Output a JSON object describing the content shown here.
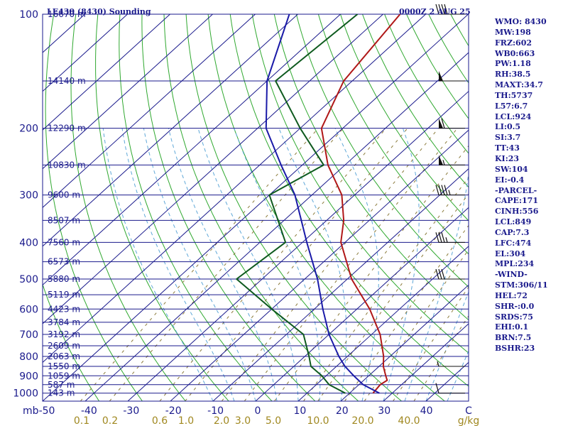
{
  "header": {
    "station_title": "LE430 (8430) Sounding",
    "time_label": "0000Z  2 AUG 25"
  },
  "indices": [
    "WMO: 8430",
    "MW:198",
    "FRZ:602",
    "WB0:663",
    "PW:1.18",
    "RH:38.5",
    "MAXT:34.7",
    "TH:5737",
    "L57:6.7",
    "LCL:924",
    "LI:0.5",
    "SI:3.7",
    "TT:43",
    "KI:23",
    "SW:104",
    "EI:-0.4",
    "-PARCEL-",
    "CAPE:171",
    "CINH:556",
    "LCL:849",
    "CAP:7.3",
    "LFC:474",
    "EL:304",
    "MPL:234",
    "-WIND-",
    "STM:306/11",
    "HEL:72",
    "SHR-:0.0",
    "SRDS:75",
    "EHI:0.1",
    "BRN:7.5",
    "BSHR:23"
  ],
  "chart_data": {
    "type": "skew-t",
    "title": "LE430 (8430) Sounding",
    "pressure_ticks": [
      100,
      200,
      300,
      400,
      500,
      600,
      700,
      800,
      900,
      1000
    ],
    "pressure_unit": "mb",
    "pressure_lim": [
      1050,
      100
    ],
    "temperature_ticks": [
      "-50",
      "-40",
      "-30",
      "-20",
      "-10",
      "0",
      "10",
      "20",
      "30",
      "40",
      "C"
    ],
    "temperature_lim": [
      -50,
      50
    ],
    "mixing_ratio_ticks": [
      "0.1",
      "0.2",
      "0.6",
      "1.0",
      "2.0",
      "3.0",
      "5.0",
      "10.0",
      "20.0",
      "40.0",
      "g/kg"
    ],
    "height_labels": [
      {
        "p": 100,
        "text": "16670 m"
      },
      {
        "p": 150,
        "text": "14140 m"
      },
      {
        "p": 200,
        "text": "12290 m"
      },
      {
        "p": 250,
        "text": "10830 m"
      },
      {
        "p": 300,
        "text": "9600 m"
      },
      {
        "p": 350,
        "text": "8507 m"
      },
      {
        "p": 400,
        "text": "7560 m"
      },
      {
        "p": 450,
        "text": "6573 m"
      },
      {
        "p": 500,
        "text": "5880 m"
      },
      {
        "p": 550,
        "text": "5119 m"
      },
      {
        "p": 600,
        "text": "4423 m"
      },
      {
        "p": 650,
        "text": "3784 m"
      },
      {
        "p": 700,
        "text": "3192 m"
      },
      {
        "p": 750,
        "text": "2609 m"
      },
      {
        "p": 800,
        "text": "2063 m"
      },
      {
        "p": 850,
        "text": "1550 m"
      },
      {
        "p": 900,
        "text": "1059 m"
      },
      {
        "p": 950,
        "text": "587 m"
      },
      {
        "p": 1000,
        "text": "143 m"
      }
    ],
    "series": [
      {
        "color": "#b01818",
        "points": [
          [
            1000,
            25.5
          ],
          [
            950,
            25
          ],
          [
            925,
            25.5
          ],
          [
            900,
            24
          ],
          [
            850,
            21
          ],
          [
            800,
            18.5
          ],
          [
            700,
            12
          ],
          [
            600,
            3
          ],
          [
            500,
            -9
          ],
          [
            400,
            -21
          ],
          [
            350,
            -26
          ],
          [
            300,
            -33
          ],
          [
            250,
            -44
          ],
          [
            200,
            -55
          ],
          [
            150,
            -62
          ],
          [
            100,
            -66
          ]
        ]
      },
      {
        "color": "#0e5a1e",
        "points": [
          [
            1000,
            19
          ],
          [
            950,
            13
          ],
          [
            900,
            9
          ],
          [
            850,
            4
          ],
          [
            800,
            1
          ],
          [
            700,
            -6
          ],
          [
            600,
            -20
          ],
          [
            500,
            -36
          ],
          [
            400,
            -34
          ],
          [
            300,
            -50
          ],
          [
            250,
            -45
          ],
          [
            200,
            -60
          ],
          [
            150,
            -78
          ],
          [
            100,
            -76
          ]
        ]
      },
      {
        "color": "#1a1aa8",
        "points": [
          [
            1000,
            27
          ],
          [
            950,
            21
          ],
          [
            900,
            16.5
          ],
          [
            850,
            12
          ],
          [
            800,
            8
          ],
          [
            700,
            0
          ],
          [
            600,
            -8
          ],
          [
            500,
            -17
          ],
          [
            400,
            -29
          ],
          [
            300,
            -44
          ],
          [
            250,
            -55
          ],
          [
            200,
            -68
          ],
          [
            150,
            -80
          ],
          [
            100,
            -92
          ]
        ]
      }
    ],
    "wind": [
      {
        "p": 1000,
        "speed_kt": 10
      },
      {
        "p": 850,
        "speed_kt": 5
      },
      {
        "p": 500,
        "speed_kt": 30
      },
      {
        "p": 400,
        "speed_kt": 35
      },
      {
        "p": 300,
        "speed_kt": 45
      },
      {
        "p": 250,
        "speed_kt": 55
      },
      {
        "p": 200,
        "speed_kt": 60
      },
      {
        "p": 150,
        "speed_kt": 50
      },
      {
        "p": 100,
        "speed_kt": 40
      }
    ],
    "colors": {
      "isobar": "#1a1a8c",
      "isotherm": "#1a1a8c",
      "dry_adiabat": "#2fa82f",
      "moist_adiabat": "#5fa8d8",
      "mixing_ratio": "#8a7a3a"
    }
  }
}
